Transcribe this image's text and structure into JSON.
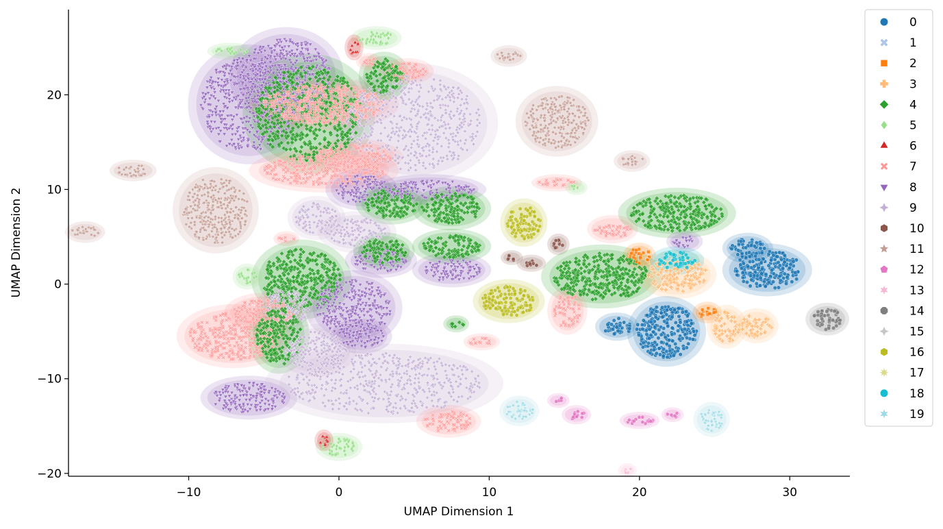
{
  "chart_data": {
    "type": "scatter",
    "xlabel": "UMAP Dimension 1",
    "ylabel": "UMAP Dimension 2",
    "xlim": [
      -18,
      34
    ],
    "ylim": [
      -20.3,
      29
    ],
    "xticks": [
      -10,
      0,
      10,
      20,
      30
    ],
    "yticks": [
      -20,
      -10,
      0,
      10,
      20
    ],
    "xtick_labels": [
      "−10",
      "0",
      "10",
      "20",
      "30"
    ],
    "ytick_labels": [
      "−20",
      "−10",
      "0",
      "10",
      "20"
    ],
    "grid": false,
    "legend_position": "outside-right",
    "series": [
      {
        "name": "0",
        "color": "#1f77b4",
        "marker": "circle"
      },
      {
        "name": "1",
        "color": "#aec7e8",
        "marker": "x"
      },
      {
        "name": "2",
        "color": "#ff7f0e",
        "marker": "square"
      },
      {
        "name": "3",
        "color": "#ffbb78",
        "marker": "plus"
      },
      {
        "name": "4",
        "color": "#2ca02c",
        "marker": "diamond"
      },
      {
        "name": "5",
        "color": "#98df8a",
        "marker": "thin-diamond"
      },
      {
        "name": "6",
        "color": "#d62728",
        "marker": "triangle-up"
      },
      {
        "name": "7",
        "color": "#ff9896",
        "marker": "tri-x"
      },
      {
        "name": "8",
        "color": "#9467bd",
        "marker": "triangle-down"
      },
      {
        "name": "9",
        "color": "#c5b0d5",
        "marker": "star4"
      },
      {
        "name": "10",
        "color": "#8c564b",
        "marker": "hexagon"
      },
      {
        "name": "11",
        "color": "#c49c94",
        "marker": "star5"
      },
      {
        "name": "12",
        "color": "#e377c2",
        "marker": "pentagon"
      },
      {
        "name": "13",
        "color": "#f7b6d2",
        "marker": "star6"
      },
      {
        "name": "14",
        "color": "#7f7f7f",
        "marker": "octagon"
      },
      {
        "name": "15",
        "color": "#c7c7c7",
        "marker": "star4"
      },
      {
        "name": "16",
        "color": "#bcbd22",
        "marker": "hexagon"
      },
      {
        "name": "17",
        "color": "#dbdb8d",
        "marker": "star8"
      },
      {
        "name": "18",
        "color": "#17becf",
        "marker": "circle"
      },
      {
        "name": "19",
        "color": "#9edae5",
        "marker": "star6"
      }
    ],
    "clusters": [
      {
        "label": "8",
        "cx": -6,
        "cy": 19,
        "rx": 3.2,
        "ry": 5
      },
      {
        "label": "8",
        "cx": -3.5,
        "cy": 22,
        "rx": 3,
        "ry": 4
      },
      {
        "label": "4",
        "cx": -2,
        "cy": 18,
        "rx": 3.5,
        "ry": 5
      },
      {
        "label": "7",
        "cx": -1,
        "cy": 19,
        "rx": 4,
        "ry": 2
      },
      {
        "label": "9",
        "cx": 5,
        "cy": 17,
        "rx": 4.5,
        "ry": 5
      },
      {
        "label": "7",
        "cx": -1,
        "cy": 12,
        "rx": 4,
        "ry": 1.6
      },
      {
        "label": "7",
        "cx": 1,
        "cy": 13.5,
        "rx": 2.5,
        "ry": 1.2
      },
      {
        "label": "5",
        "cx": 2.5,
        "cy": 26,
        "rx": 1.2,
        "ry": 0.7
      },
      {
        "label": "6",
        "cx": 1,
        "cy": 25,
        "rx": 0.3,
        "ry": 0.8
      },
      {
        "label": "4",
        "cx": 3,
        "cy": 22,
        "rx": 1.2,
        "ry": 1.8
      },
      {
        "label": "7",
        "cx": 4.5,
        "cy": 22.5,
        "rx": 1.3,
        "ry": 0.8
      },
      {
        "label": "7",
        "cx": 2,
        "cy": 23.5,
        "rx": 0.5,
        "ry": 0.4
      },
      {
        "label": "5",
        "cx": -7.2,
        "cy": 24.6,
        "rx": 1.1,
        "ry": 0.4
      },
      {
        "label": "11",
        "cx": -13.7,
        "cy": 12,
        "rx": 1.1,
        "ry": 0.6
      },
      {
        "label": "11",
        "cx": -16.9,
        "cy": 5.5,
        "rx": 0.9,
        "ry": 0.6
      },
      {
        "label": "11",
        "cx": -8.2,
        "cy": 7.8,
        "rx": 2.2,
        "ry": 3.5
      },
      {
        "label": "8",
        "cx": 1.5,
        "cy": 10,
        "rx": 1.8,
        "ry": 1.5
      },
      {
        "label": "4",
        "cx": 3.5,
        "cy": 8.5,
        "rx": 1.8,
        "ry": 1.5
      },
      {
        "label": "8",
        "cx": 6,
        "cy": 10,
        "rx": 3,
        "ry": 1
      },
      {
        "label": "4",
        "cx": 7.5,
        "cy": 8,
        "rx": 2,
        "ry": 1.6
      },
      {
        "label": "9",
        "cx": -1.5,
        "cy": 7,
        "rx": 1.4,
        "ry": 1.6
      },
      {
        "label": "7",
        "cx": -3.5,
        "cy": 4.8,
        "rx": 0.5,
        "ry": 0.3
      },
      {
        "label": "4",
        "cx": -2.5,
        "cy": 0.5,
        "rx": 2.6,
        "ry": 3.2
      },
      {
        "label": "5",
        "cx": -6.1,
        "cy": 0.8,
        "rx": 0.6,
        "ry": 0.8
      },
      {
        "label": "9",
        "cx": 1.2,
        "cy": 5.5,
        "rx": 2,
        "ry": 1.5
      },
      {
        "label": "8",
        "cx": 2.8,
        "cy": 2.5,
        "rx": 1.8,
        "ry": 1.2
      },
      {
        "label": "4",
        "cx": 3,
        "cy": 3.5,
        "rx": 1.5,
        "ry": 1.3
      },
      {
        "label": "8",
        "cx": 7.5,
        "cy": 1.5,
        "rx": 2,
        "ry": 1.2
      },
      {
        "label": "4",
        "cx": 7.5,
        "cy": 4,
        "rx": 2,
        "ry": 1.2
      },
      {
        "label": "8",
        "cx": 1,
        "cy": -2.5,
        "rx": 2.5,
        "ry": 3
      },
      {
        "label": "9",
        "cx": -3.5,
        "cy": -2.5,
        "rx": 1.5,
        "ry": 1.8
      },
      {
        "label": "7",
        "cx": -7,
        "cy": -5.5,
        "rx": 3,
        "ry": 2.5
      },
      {
        "label": "7",
        "cx": -5,
        "cy": -3,
        "rx": 2,
        "ry": 1.4
      },
      {
        "label": "4",
        "cx": -4,
        "cy": -5.5,
        "rx": 1.5,
        "ry": 3
      },
      {
        "label": "9",
        "cx": -1.5,
        "cy": -7,
        "rx": 2,
        "ry": 2
      },
      {
        "label": "8",
        "cx": -6,
        "cy": -12,
        "rx": 2.5,
        "ry": 1.6
      },
      {
        "label": "9",
        "cx": 3,
        "cy": -10.5,
        "rx": 6.5,
        "ry": 3.2
      },
      {
        "label": "8",
        "cx": 1.5,
        "cy": -5.5,
        "rx": 1.5,
        "ry": 1.2
      },
      {
        "label": "5",
        "cx": 0,
        "cy": -17.2,
        "rx": 1.1,
        "ry": 0.9
      },
      {
        "label": "6",
        "cx": -1,
        "cy": -16.5,
        "rx": 0.3,
        "ry": 0.6
      },
      {
        "label": "7",
        "cx": 7.3,
        "cy": -14.5,
        "rx": 1.6,
        "ry": 1.1
      },
      {
        "label": "4",
        "cx": 7.8,
        "cy": -4.2,
        "rx": 0.5,
        "ry": 0.4
      },
      {
        "label": "7",
        "cx": 9.5,
        "cy": -6.1,
        "rx": 0.8,
        "ry": 0.4
      },
      {
        "label": "16",
        "cx": 12.3,
        "cy": 6.5,
        "rx": 1.1,
        "ry": 1.8
      },
      {
        "label": "16",
        "cx": 11.3,
        "cy": -1.8,
        "rx": 1.8,
        "ry": 1.6
      },
      {
        "label": "10",
        "cx": 11.5,
        "cy": 2.8,
        "rx": 0.4,
        "ry": 0.3
      },
      {
        "label": "10",
        "cx": 12.8,
        "cy": 2.2,
        "rx": 0.6,
        "ry": 0.4
      },
      {
        "label": "10",
        "cx": 14.6,
        "cy": 4.2,
        "rx": 0.4,
        "ry": 0.6
      },
      {
        "label": "11",
        "cx": 11.3,
        "cy": 24.1,
        "rx": 0.8,
        "ry": 0.6
      },
      {
        "label": "11",
        "cx": 14.5,
        "cy": 17.2,
        "rx": 2.1,
        "ry": 2.8
      },
      {
        "label": "11",
        "cx": 19.5,
        "cy": 13,
        "rx": 0.8,
        "ry": 0.6
      },
      {
        "label": "7",
        "cx": 14.5,
        "cy": 10.7,
        "rx": 1.2,
        "ry": 0.4
      },
      {
        "label": "5",
        "cx": 15.8,
        "cy": 10.2,
        "rx": 0.4,
        "ry": 0.3
      },
      {
        "label": "7",
        "cx": 18.2,
        "cy": 5.8,
        "rx": 1.2,
        "ry": 0.9
      },
      {
        "label": "4",
        "cx": 17.5,
        "cy": 0.8,
        "rx": 3.2,
        "ry": 2.5
      },
      {
        "label": "7",
        "cx": 15.2,
        "cy": -2.8,
        "rx": 0.9,
        "ry": 1.8
      },
      {
        "label": "4",
        "cx": 22.5,
        "cy": 7.5,
        "rx": 3.1,
        "ry": 1.9
      },
      {
        "label": "8",
        "cx": 23,
        "cy": 4.5,
        "rx": 0.8,
        "ry": 0.6
      },
      {
        "label": "2",
        "cx": 20,
        "cy": 3,
        "rx": 0.7,
        "ry": 0.8
      },
      {
        "label": "3",
        "cx": 22.5,
        "cy": 1,
        "rx": 2,
        "ry": 1.8
      },
      {
        "label": "18",
        "cx": 22.5,
        "cy": 2.5,
        "rx": 1.3,
        "ry": 0.9
      },
      {
        "label": "0",
        "cx": 28.5,
        "cy": 1.5,
        "rx": 2.3,
        "ry": 2
      },
      {
        "label": "0",
        "cx": 27.2,
        "cy": 3.8,
        "rx": 1.2,
        "ry": 1
      },
      {
        "label": "0",
        "cx": 21.8,
        "cy": -5,
        "rx": 2,
        "ry": 2.8
      },
      {
        "label": "0",
        "cx": 18.5,
        "cy": -4.5,
        "rx": 1,
        "ry": 0.9
      },
      {
        "label": "2",
        "cx": 24.5,
        "cy": -3,
        "rx": 0.6,
        "ry": 0.6
      },
      {
        "label": "3",
        "cx": 25.8,
        "cy": -4.5,
        "rx": 0.9,
        "ry": 1.6
      },
      {
        "label": "3",
        "cx": 27.8,
        "cy": -4.4,
        "rx": 1,
        "ry": 1.2
      },
      {
        "label": "14",
        "cx": 32.5,
        "cy": -3.7,
        "rx": 1,
        "ry": 1.1
      },
      {
        "label": "19",
        "cx": 12,
        "cy": -13.4,
        "rx": 0.9,
        "ry": 1
      },
      {
        "label": "19",
        "cx": 24.8,
        "cy": -14.3,
        "rx": 0.8,
        "ry": 1.2
      },
      {
        "label": "12",
        "cx": 14.6,
        "cy": -12.3,
        "rx": 0.4,
        "ry": 0.3
      },
      {
        "label": "12",
        "cx": 15.8,
        "cy": -13.8,
        "rx": 0.6,
        "ry": 0.5
      },
      {
        "label": "12",
        "cx": 20,
        "cy": -14.4,
        "rx": 0.9,
        "ry": 0.4
      },
      {
        "label": "12",
        "cx": 22.2,
        "cy": -13.8,
        "rx": 0.4,
        "ry": 0.3
      },
      {
        "label": "13",
        "cx": 19.2,
        "cy": -19.7,
        "rx": 0.3,
        "ry": 0.3
      }
    ]
  }
}
